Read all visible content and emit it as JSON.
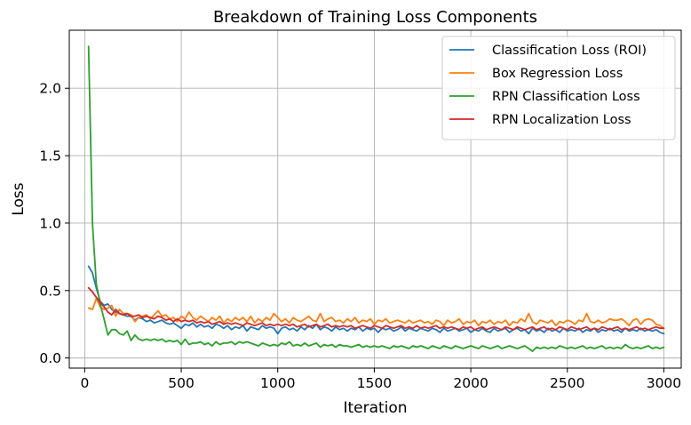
{
  "chart_data": {
    "type": "line",
    "title": "Breakdown of Training Loss Components",
    "xlabel": "Iteration",
    "ylabel": "Loss",
    "xlim": [
      -80,
      3090
    ],
    "ylim": [
      -0.075,
      2.43
    ],
    "xticks": [
      0,
      500,
      1000,
      1500,
      2000,
      2500,
      3000
    ],
    "yticks": [
      0.0,
      0.5,
      1.0,
      1.5,
      2.0
    ],
    "xtick_labels": [
      "0",
      "500",
      "1000",
      "1500",
      "2000",
      "2500",
      "3000"
    ],
    "ytick_labels": [
      "0.0",
      "0.5",
      "1.0",
      "1.5",
      "2.0"
    ],
    "grid": true,
    "legend_position": "top-right",
    "x": [
      20,
      40,
      60,
      80,
      100,
      120,
      140,
      160,
      180,
      200,
      220,
      240,
      260,
      280,
      300,
      320,
      340,
      360,
      380,
      400,
      420,
      440,
      460,
      480,
      500,
      520,
      540,
      560,
      580,
      600,
      620,
      640,
      660,
      680,
      700,
      720,
      740,
      760,
      780,
      800,
      820,
      840,
      860,
      880,
      900,
      920,
      940,
      960,
      980,
      1000,
      1020,
      1040,
      1060,
      1080,
      1100,
      1120,
      1140,
      1160,
      1180,
      1200,
      1220,
      1240,
      1260,
      1280,
      1300,
      1320,
      1340,
      1360,
      1380,
      1400,
      1420,
      1440,
      1460,
      1480,
      1500,
      1520,
      1540,
      1560,
      1580,
      1600,
      1620,
      1640,
      1660,
      1680,
      1700,
      1720,
      1740,
      1760,
      1780,
      1800,
      1820,
      1840,
      1860,
      1880,
      1900,
      1920,
      1940,
      1960,
      1980,
      2000,
      2020,
      2040,
      2060,
      2080,
      2100,
      2120,
      2140,
      2160,
      2180,
      2200,
      2220,
      2240,
      2260,
      2280,
      2300,
      2320,
      2340,
      2360,
      2380,
      2400,
      2420,
      2440,
      2460,
      2480,
      2500,
      2520,
      2540,
      2560,
      2580,
      2600,
      2620,
      2640,
      2660,
      2680,
      2700,
      2720,
      2740,
      2760,
      2780,
      2800,
      2820,
      2840,
      2860,
      2880,
      2900,
      2920,
      2940,
      2960,
      2980,
      3000
    ],
    "series": [
      {
        "name": "Classification Loss (ROI)",
        "color": "#1f77b4",
        "values": [
          0.68,
          0.63,
          0.52,
          0.42,
          0.39,
          0.4,
          0.36,
          0.34,
          0.33,
          0.32,
          0.31,
          0.31,
          0.28,
          0.3,
          0.29,
          0.27,
          0.28,
          0.26,
          0.27,
          0.28,
          0.26,
          0.25,
          0.26,
          0.24,
          0.22,
          0.25,
          0.24,
          0.26,
          0.23,
          0.25,
          0.23,
          0.24,
          0.22,
          0.25,
          0.24,
          0.22,
          0.24,
          0.21,
          0.23,
          0.22,
          0.24,
          0.2,
          0.23,
          0.22,
          0.21,
          0.24,
          0.22,
          0.23,
          0.22,
          0.18,
          0.22,
          0.23,
          0.21,
          0.22,
          0.2,
          0.23,
          0.21,
          0.24,
          0.22,
          0.25,
          0.21,
          0.23,
          0.22,
          0.2,
          0.23,
          0.21,
          0.22,
          0.2,
          0.22,
          0.21,
          0.23,
          0.2,
          0.22,
          0.21,
          0.22,
          0.19,
          0.22,
          0.21,
          0.22,
          0.2,
          0.21,
          0.23,
          0.2,
          0.22,
          0.21,
          0.2,
          0.22,
          0.21,
          0.2,
          0.22,
          0.21,
          0.19,
          0.22,
          0.2,
          0.21,
          0.22,
          0.2,
          0.21,
          0.22,
          0.19,
          0.21,
          0.2,
          0.22,
          0.2,
          0.19,
          0.22,
          0.2,
          0.21,
          0.22,
          0.19,
          0.21,
          0.22,
          0.2,
          0.21,
          0.18,
          0.22,
          0.2,
          0.21,
          0.19,
          0.22,
          0.2,
          0.21,
          0.19,
          0.22,
          0.2,
          0.21,
          0.2,
          0.22,
          0.19,
          0.21,
          0.2,
          0.22,
          0.19,
          0.21,
          0.2,
          0.22,
          0.2,
          0.21,
          0.19,
          0.22,
          0.2,
          0.21,
          0.2,
          0.22,
          0.2,
          0.21,
          0.2,
          0.21,
          0.19,
          0.18
        ]
      },
      {
        "name": "Box Regression Loss",
        "color": "#ff7f0e",
        "values": [
          0.37,
          0.36,
          0.44,
          0.38,
          0.36,
          0.37,
          0.39,
          0.31,
          0.36,
          0.33,
          0.33,
          0.32,
          0.27,
          0.3,
          0.31,
          0.32,
          0.29,
          0.32,
          0.35,
          0.31,
          0.32,
          0.29,
          0.3,
          0.27,
          0.31,
          0.29,
          0.34,
          0.3,
          0.28,
          0.31,
          0.29,
          0.27,
          0.3,
          0.28,
          0.31,
          0.26,
          0.29,
          0.27,
          0.3,
          0.28,
          0.3,
          0.27,
          0.31,
          0.26,
          0.29,
          0.27,
          0.3,
          0.28,
          0.33,
          0.3,
          0.27,
          0.29,
          0.26,
          0.3,
          0.28,
          0.27,
          0.29,
          0.31,
          0.28,
          0.27,
          0.33,
          0.27,
          0.29,
          0.3,
          0.27,
          0.28,
          0.26,
          0.29,
          0.27,
          0.3,
          0.26,
          0.28,
          0.27,
          0.29,
          0.25,
          0.28,
          0.27,
          0.29,
          0.26,
          0.27,
          0.28,
          0.27,
          0.26,
          0.28,
          0.26,
          0.27,
          0.28,
          0.26,
          0.27,
          0.25,
          0.28,
          0.27,
          0.24,
          0.28,
          0.26,
          0.27,
          0.29,
          0.25,
          0.27,
          0.26,
          0.28,
          0.24,
          0.27,
          0.26,
          0.28,
          0.25,
          0.27,
          0.26,
          0.28,
          0.24,
          0.27,
          0.26,
          0.29,
          0.27,
          0.33,
          0.27,
          0.25,
          0.28,
          0.27,
          0.26,
          0.28,
          0.24,
          0.27,
          0.26,
          0.28,
          0.27,
          0.25,
          0.28,
          0.27,
          0.33,
          0.27,
          0.26,
          0.28,
          0.26,
          0.27,
          0.29,
          0.28,
          0.28,
          0.29,
          0.27,
          0.24,
          0.28,
          0.29,
          0.25,
          0.28,
          0.29,
          0.28,
          0.25,
          0.24,
          0.22
        ]
      },
      {
        "name": "RPN Classification Loss",
        "color": "#2ca02c",
        "values": [
          2.31,
          1.0,
          0.55,
          0.4,
          0.29,
          0.17,
          0.21,
          0.21,
          0.18,
          0.17,
          0.2,
          0.13,
          0.17,
          0.14,
          0.13,
          0.14,
          0.13,
          0.14,
          0.13,
          0.14,
          0.12,
          0.13,
          0.12,
          0.13,
          0.1,
          0.14,
          0.1,
          0.11,
          0.11,
          0.12,
          0.1,
          0.11,
          0.09,
          0.12,
          0.1,
          0.11,
          0.11,
          0.12,
          0.1,
          0.12,
          0.11,
          0.12,
          0.11,
          0.1,
          0.09,
          0.11,
          0.1,
          0.09,
          0.1,
          0.09,
          0.11,
          0.1,
          0.12,
          0.09,
          0.1,
          0.09,
          0.11,
          0.09,
          0.1,
          0.11,
          0.08,
          0.1,
          0.09,
          0.1,
          0.08,
          0.1,
          0.09,
          0.09,
          0.08,
          0.09,
          0.1,
          0.08,
          0.09,
          0.08,
          0.09,
          0.08,
          0.09,
          0.08,
          0.07,
          0.09,
          0.08,
          0.09,
          0.08,
          0.07,
          0.09,
          0.08,
          0.09,
          0.08,
          0.07,
          0.09,
          0.08,
          0.07,
          0.09,
          0.08,
          0.07,
          0.09,
          0.08,
          0.07,
          0.08,
          0.09,
          0.08,
          0.07,
          0.09,
          0.08,
          0.07,
          0.08,
          0.09,
          0.07,
          0.08,
          0.09,
          0.08,
          0.07,
          0.08,
          0.09,
          0.07,
          0.05,
          0.08,
          0.07,
          0.08,
          0.07,
          0.08,
          0.07,
          0.09,
          0.08,
          0.07,
          0.08,
          0.07,
          0.08,
          0.09,
          0.07,
          0.08,
          0.07,
          0.08,
          0.09,
          0.07,
          0.08,
          0.07,
          0.08,
          0.07,
          0.1,
          0.08,
          0.07,
          0.08,
          0.07,
          0.08,
          0.09,
          0.07,
          0.08,
          0.07,
          0.08
        ]
      },
      {
        "name": "RPN Localization Loss",
        "color": "#d62728",
        "values": [
          0.52,
          0.49,
          0.45,
          0.41,
          0.38,
          0.34,
          0.32,
          0.36,
          0.33,
          0.32,
          0.33,
          0.31,
          0.31,
          0.32,
          0.3,
          0.31,
          0.3,
          0.29,
          0.31,
          0.3,
          0.28,
          0.29,
          0.27,
          0.29,
          0.27,
          0.28,
          0.27,
          0.28,
          0.26,
          0.27,
          0.26,
          0.27,
          0.25,
          0.26,
          0.27,
          0.25,
          0.26,
          0.25,
          0.26,
          0.25,
          0.24,
          0.26,
          0.25,
          0.24,
          0.25,
          0.26,
          0.24,
          0.25,
          0.24,
          0.25,
          0.24,
          0.25,
          0.24,
          0.25,
          0.23,
          0.24,
          0.25,
          0.23,
          0.24,
          0.25,
          0.23,
          0.24,
          0.25,
          0.23,
          0.24,
          0.23,
          0.24,
          0.23,
          0.24,
          0.22,
          0.23,
          0.24,
          0.23,
          0.22,
          0.24,
          0.23,
          0.22,
          0.24,
          0.23,
          0.22,
          0.23,
          0.24,
          0.22,
          0.23,
          0.22,
          0.24,
          0.22,
          0.23,
          0.22,
          0.23,
          0.24,
          0.22,
          0.23,
          0.22,
          0.23,
          0.22,
          0.21,
          0.23,
          0.22,
          0.23,
          0.21,
          0.22,
          0.23,
          0.21,
          0.22,
          0.23,
          0.22,
          0.21,
          0.23,
          0.22,
          0.21,
          0.23,
          0.22,
          0.21,
          0.22,
          0.23,
          0.21,
          0.22,
          0.23,
          0.21,
          0.22,
          0.21,
          0.23,
          0.22,
          0.21,
          0.23,
          0.22,
          0.21,
          0.22,
          0.23,
          0.21,
          0.22,
          0.21,
          0.23,
          0.22,
          0.21,
          0.22,
          0.23,
          0.21,
          0.22,
          0.21,
          0.22,
          0.23,
          0.21,
          0.22,
          0.21,
          0.22,
          0.23,
          0.22,
          0.22
        ]
      }
    ]
  }
}
